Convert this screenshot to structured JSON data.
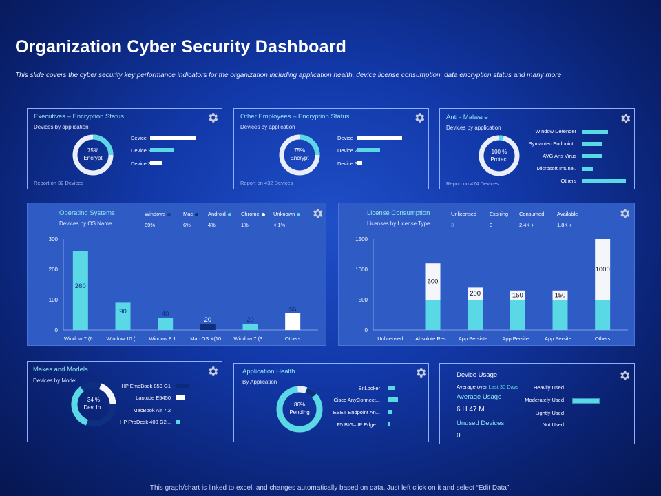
{
  "title": "Organization Cyber Security Dashboard",
  "subtitle": "This slide covers the cyber security key performance indicators for the organization including application health, device license consumption, data encryption status and many more",
  "footer": "This graph/chart is linked to excel, and changes automatically based on data. Just left click on it and select “Edit Data”.",
  "colors": {
    "cyan": "#5ad8e6",
    "white": "#ffffff",
    "navy": "#0d2f7e",
    "panel": "#2f5bc4"
  },
  "executives": {
    "title": "Executives – Encryption Status",
    "sub": "Devices by application",
    "donut_pct": "75%",
    "donut_label": "Encrypt",
    "bars": [
      {
        "label": "Device",
        "color": "white"
      },
      {
        "label": "Device 2",
        "color": "cyan"
      },
      {
        "label": "Device 3",
        "color": "white"
      }
    ],
    "report": "Report on 32 Devices",
    "icon": "gear-icon"
  },
  "employees": {
    "title": "Other Employees – Encryption Status",
    "sub": "Devices by application",
    "donut_pct": "75%",
    "donut_label": "Encrypt",
    "bars": [
      {
        "label": "Device",
        "color": "white"
      },
      {
        "label": "Device 2",
        "color": "cyan"
      },
      {
        "label": "Device 3",
        "color": "white"
      }
    ],
    "report": "Report on 432 Devices",
    "icon": "gear-icon"
  },
  "antimalware": {
    "title": "Anti - Malware",
    "sub": "Devices by application",
    "donut_pct": "100 %",
    "donut_label": "Protect",
    "bars": [
      {
        "label": "Window Defender"
      },
      {
        "label": "Symantec Endpoint.."
      },
      {
        "label": "AVG Ans Virus"
      },
      {
        "label": "Microsoft Intune.."
      },
      {
        "label": "Others"
      }
    ],
    "report": "Report on 474 Devices",
    "icon": "gear-icon"
  },
  "os": {
    "title": "Operating Systems",
    "sub": "Devices by OS Name",
    "legend": [
      {
        "name": "Windows",
        "value": "89%"
      },
      {
        "name": "Mac",
        "value": "6%"
      },
      {
        "name": "Android",
        "value": "4%"
      },
      {
        "name": "Chrome",
        "value": "1%"
      },
      {
        "name": "Unknown",
        "value": "< 1%"
      }
    ],
    "icon": "gear-icon"
  },
  "license": {
    "title": "License Consumption",
    "sub": "Licenses by License Type",
    "stats": [
      {
        "name": "Unlicensed",
        "value": "3"
      },
      {
        "name": "Expiring",
        "value": "0"
      },
      {
        "name": "Consumed",
        "value": "2.4K +"
      },
      {
        "name": "Available",
        "value": "1.8K +"
      }
    ],
    "icon": "gear-icon"
  },
  "makes": {
    "title": "Makes and Models",
    "sub": "Devices by Model",
    "donut_pct": "34 %",
    "donut_label": "Dev. In..",
    "items": [
      {
        "label": "HP EmoBook 850 G1"
      },
      {
        "label": "Laotude E5450"
      },
      {
        "label": "MacBook Air 7.2"
      },
      {
        "label": "HP ProDesk 400 G2..."
      }
    ],
    "icon": "gear-icon"
  },
  "apphealth": {
    "title": "Application Health",
    "sub": "By Application",
    "donut_pct": "86%",
    "donut_label": "Pending",
    "items": [
      {
        "label": "BitLocker"
      },
      {
        "label": "Cisco AnyConnect..."
      },
      {
        "label": "ESET  Endpoint An..."
      },
      {
        "label": "F5 BIG– IP Edge..."
      }
    ],
    "icon": "gear-icon"
  },
  "usage": {
    "title": "Device Usage",
    "avg_prefix": "Average  over",
    "avg_period": "Last 30 Days",
    "avg_label": "Average  Usage",
    "avg_value": "6 H  47 M",
    "unused_label": "Unused Devices",
    "unused_value": "0",
    "levels": [
      "Heavily Used",
      "Moderately Used",
      "Lightly Used",
      "Not Used"
    ],
    "icon": "gear-icon"
  },
  "chart_data": [
    {
      "type": "bar",
      "title": "Operating Systems",
      "categories": [
        "Window 7 (6...",
        "Window 10 (...",
        "Window 8.1 ...",
        "Mac OS X(10...",
        "Window 7 (3...",
        "Others"
      ],
      "values": [
        260,
        90,
        40,
        20,
        20,
        55
      ],
      "value_labels": [
        "260",
        "90",
        "40",
        "20",
        "20",
        "55"
      ],
      "ylim": [
        0,
        300
      ],
      "yticks": [
        0,
        100,
        200,
        300
      ],
      "colors": [
        "#5ad8e6",
        "#5ad8e6",
        "#5ad8e6",
        "#0d2f7e",
        "#5ad8e6",
        "#ffffff"
      ],
      "grid": false
    },
    {
      "type": "bar",
      "title": "License Consumption",
      "categories": [
        "Unlicensed",
        "Absolute Res...",
        "App Persiste...",
        "App Persite...",
        "App Persite...",
        "Others"
      ],
      "series": [
        {
          "values": [
            0,
            500,
            500,
            500,
            500,
            500
          ]
        },
        {
          "values": [
            0,
            600,
            200,
            150,
            150,
            1000
          ]
        }
      ],
      "value_labels": [
        "",
        "600",
        "200",
        "150",
        "150",
        "1000"
      ],
      "stacked": true,
      "ylim": [
        0,
        1500
      ],
      "yticks": [
        0,
        500,
        1000,
        1500
      ],
      "colors": [
        "#5ad8e6",
        "#f4f6fb"
      ],
      "grid": false
    },
    {
      "type": "bar",
      "title": "Executives – Encryption Status",
      "orientation": "horizontal",
      "categories": [
        "Device",
        "Device 2",
        "Device 3"
      ],
      "values": [
        65,
        33,
        17
      ],
      "xlim": [
        0,
        100
      ]
    },
    {
      "type": "bar",
      "title": "Other Employees – Encryption Status",
      "orientation": "horizontal",
      "categories": [
        "Device",
        "Device 2",
        "Device 3"
      ],
      "values": [
        65,
        33,
        8
      ],
      "xlim": [
        0,
        100
      ]
    },
    {
      "type": "bar",
      "title": "Anti - Malware",
      "orientation": "horizontal",
      "categories": [
        "Window Defender",
        "Symantec Endpoint..",
        "AVG Ans Virus",
        "Microsoft Intune..",
        "Others"
      ],
      "values": [
        38,
        29,
        29,
        16,
        64
      ],
      "xlim": [
        0,
        100
      ]
    },
    {
      "type": "bar",
      "title": "Makes and Models",
      "orientation": "horizontal",
      "categories": [
        "HP EmoBook 850 G1",
        "Laotude E5450",
        "MacBook Air 7.2",
        "HP ProDesk 400 G2..."
      ],
      "values": [
        10,
        12,
        5,
        5
      ],
      "xlim": [
        0,
        100
      ]
    },
    {
      "type": "bar",
      "title": "Application Health",
      "orientation": "horizontal",
      "categories": [
        "BitLocker",
        "Cisco AnyConnect...",
        "ESET  Endpoint An...",
        "F5 BIG– IP Edge..."
      ],
      "values": [
        9,
        14,
        6,
        3
      ],
      "xlim": [
        0,
        100
      ]
    },
    {
      "type": "bar",
      "title": "Device Usage",
      "orientation": "horizontal",
      "categories": [
        "Heavily Used",
        "Moderately Used",
        "Lightly Used",
        "Not Used"
      ],
      "values": [
        0,
        100,
        0,
        0
      ],
      "xlim": [
        0,
        100
      ]
    },
    {
      "type": "pie",
      "title": "Donut gauges",
      "series": [
        {
          "name": "Executives – Encryption Status",
          "values": [
            75,
            25
          ]
        },
        {
          "name": "Other Employees – Encryption Status",
          "values": [
            75,
            25
          ]
        },
        {
          "name": "Anti - Malware",
          "values": [
            100,
            0
          ]
        },
        {
          "name": "Makes and Models",
          "values": [
            34,
            66
          ]
        },
        {
          "name": "Application Health",
          "values": [
            86,
            14
          ]
        }
      ]
    }
  ]
}
